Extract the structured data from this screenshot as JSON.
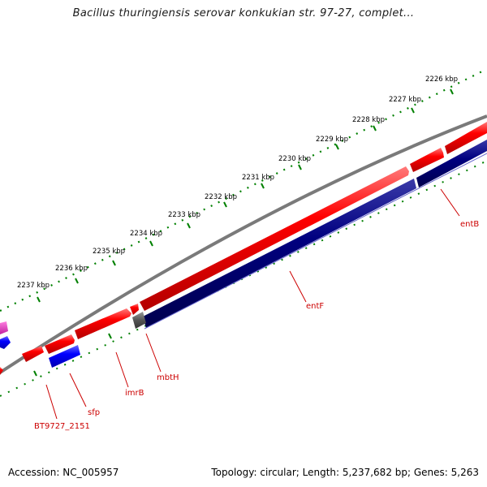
{
  "title": "Bacillus thuringiensis serovar konkukian str. 97-27, complet...",
  "footer": {
    "accession": "Accession: NC_005957",
    "summary": "Topology: circular; Length: 5,237,682 bp; Genes: 5,263"
  },
  "colors": {
    "forward_cds": "#ff0000",
    "reverse_cds": "#0000ff",
    "navy_feature": "#000080",
    "gray_feature": "#555555",
    "magenta_feature": "#e040c0",
    "backbone": "#808080",
    "ticks": "#008000",
    "gene_label": "#cc0000"
  },
  "ticks": [
    {
      "label": "2226 kbp"
    },
    {
      "label": "2227 kbp"
    },
    {
      "label": "2228 kbp"
    },
    {
      "label": "2229 kbp"
    },
    {
      "label": "2230 kbp"
    },
    {
      "label": "2231 kbp"
    },
    {
      "label": "2232 kbp"
    },
    {
      "label": "2233 kbp"
    },
    {
      "label": "2234 kbp"
    },
    {
      "label": "2235 kbp"
    },
    {
      "label": "2236 kbp"
    },
    {
      "label": "2237 kbp"
    }
  ],
  "gene_labels": [
    {
      "name": "entB"
    },
    {
      "name": "entF"
    },
    {
      "name": "mbtH"
    },
    {
      "name": "imrB"
    },
    {
      "name": "sfp"
    },
    {
      "name": "BT9727_2151"
    }
  ]
}
